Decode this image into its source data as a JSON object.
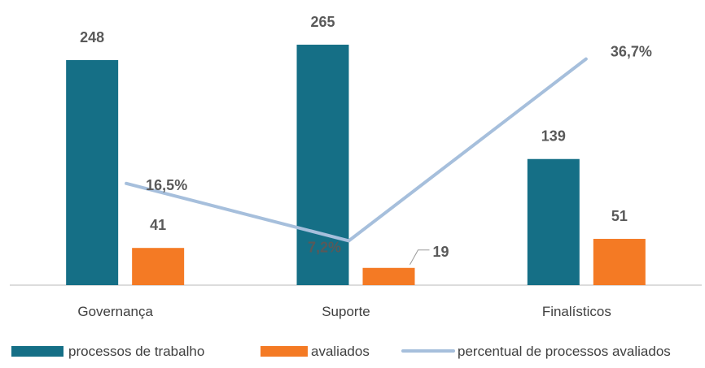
{
  "colors": {
    "processos": "#156f86",
    "avaliados": "#f47a24",
    "percentual": "#a6bfdc",
    "axis": "#d0d0d0",
    "label_text": "#595959"
  },
  "chart_data": {
    "type": "bar",
    "categories": [
      "Governança",
      "Suporte",
      "Finalísticos"
    ],
    "series": [
      {
        "name": "processos de trabalho",
        "type": "bar",
        "values": [
          248,
          265,
          139
        ],
        "labels": [
          "248",
          "265",
          "139"
        ]
      },
      {
        "name": "avaliados",
        "type": "bar",
        "values": [
          41,
          19,
          51
        ],
        "labels": [
          "41",
          "19",
          "51"
        ]
      },
      {
        "name": "percentual de processos avaliados",
        "type": "line",
        "values": [
          16.5,
          7.2,
          36.7
        ],
        "labels": [
          "16,5%",
          "7,2%",
          "36,7%"
        ]
      }
    ],
    "ylim": [
      0,
      300
    ],
    "y2lim": [
      0,
      41
    ],
    "grid": false,
    "legend_position": "bottom"
  }
}
